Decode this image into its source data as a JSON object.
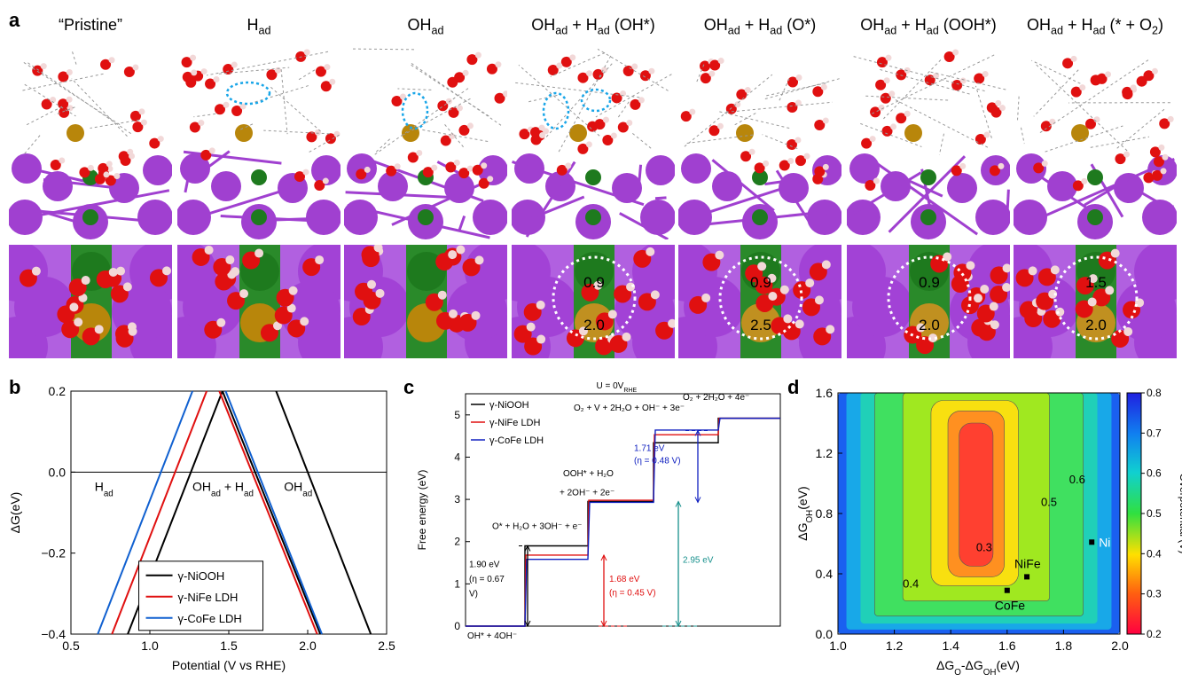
{
  "panels": {
    "a": "a",
    "b": "b",
    "c": "c",
    "d": "d"
  },
  "panel_a": {
    "columns": [
      {
        "title": "“Pristine”"
      },
      {
        "title": "H",
        "sub": "ad"
      },
      {
        "title": "OH",
        "sub": "ad"
      },
      {
        "title": "OH",
        "sub": "ad",
        "rest": " + H",
        "sub2": "ad",
        "tail": " (OH*)",
        "bader": [
          "0.9",
          "2.0"
        ]
      },
      {
        "title": "OH",
        "sub": "ad",
        "rest": " + H",
        "sub2": "ad",
        "tail": " (O*)",
        "bader": [
          "0.9",
          "2.5"
        ]
      },
      {
        "title": "OH",
        "sub": "ad",
        "rest": " + H",
        "sub2": "ad",
        "tail": " (OOH*)",
        "bader": [
          "0.9",
          "2.0"
        ]
      },
      {
        "title": "OH",
        "sub": "ad",
        "rest": " + H",
        "sub2": "ad",
        "tail": " (* + O",
        "sub3": "2",
        "tail2": ")",
        "bader": [
          "1.5",
          "2.0"
        ]
      }
    ],
    "colors": {
      "K": "#a040d0",
      "O": "#e01010",
      "H": "#f2d8d8",
      "Ni": "#1e7a1e",
      "Fe": "#b8860b",
      "selection": "#1aa6e8"
    }
  },
  "chart_data": [
    {
      "type": "line",
      "panel": "b",
      "xlabel": "Potential (V vs RHE)",
      "ylabel": "ΔG(eV)",
      "xlim": [
        0.5,
        2.5
      ],
      "ylim": [
        -0.4,
        0.2
      ],
      "xticks": [
        "0.5",
        "1.0",
        "1.5",
        "2.0",
        "2.5"
      ],
      "yticks": [
        "−0.4",
        "−0.2",
        "0.0",
        "0.2"
      ],
      "region_labels": [
        {
          "text": "H",
          "sub": "ad",
          "x": 0.65,
          "y": -0.02
        },
        {
          "text": "OH",
          "sub": "ad",
          "tail": " + H",
          "sub2": "ad",
          "x": 1.27,
          "y": -0.02
        },
        {
          "text": "OH",
          "sub": "ad",
          "x": 1.85,
          "y": -0.02
        }
      ],
      "series": [
        {
          "name": "γ-NiOOH",
          "color": "#000000",
          "segments": [
            [
              [
                0.86,
                -0.4
              ],
              [
                1.46,
                0.2
              ]
            ],
            [
              [
                1.46,
                0.2
              ],
              [
                2.08,
                -0.4
              ]
            ],
            [
              [
                1.8,
                0.2
              ],
              [
                2.4,
                -0.4
              ]
            ]
          ]
        },
        {
          "name": "γ-NiFe LDH",
          "color": "#e01010",
          "segments": [
            [
              [
                0.76,
                -0.4
              ],
              [
                1.36,
                0.2
              ]
            ],
            [
              [
                1.44,
                0.2
              ],
              [
                2.06,
                -0.4
              ]
            ]
          ]
        },
        {
          "name": "γ-CoFe LDH",
          "color": "#1060d0",
          "segments": [
            [
              [
                0.67,
                -0.4
              ],
              [
                1.27,
                0.2
              ]
            ],
            [
              [
                1.48,
                0.2
              ],
              [
                2.09,
                -0.4
              ]
            ]
          ]
        }
      ]
    },
    {
      "type": "line",
      "panel": "c",
      "title": "U = 0V",
      "title_sub": "RHE",
      "ylabel": "Free energy (eV)",
      "ylim": [
        0,
        5.5
      ],
      "yticks": [
        "0",
        "1",
        "2",
        "3",
        "4",
        "5"
      ],
      "series": [
        {
          "name": "γ-NiOOH",
          "color": "#000000",
          "levels": [
            0,
            1.9,
            2.95,
            4.34,
            4.92
          ]
        },
        {
          "name": "γ-NiFe LDH",
          "color": "#e01010",
          "levels": [
            0,
            1.68,
            2.98,
            4.53,
            4.92
          ]
        },
        {
          "name": "γ-CoFe LDH",
          "color": "#1020c0",
          "levels": [
            0,
            1.58,
            2.93,
            4.64,
            4.92
          ]
        }
      ],
      "step_labels": [
        "OH* + 4OH⁻",
        "O* + H₂O + 3OH⁻ + e⁻",
        "OOH* + H₂O",
        "+ 2OH⁻ + 2e⁻",
        "O₂ + V + 2H₂O + OH⁻ + 3e⁻",
        "O₂ + 2H₂O + 4e⁻"
      ],
      "annotations": [
        {
          "text": "1.90 eV",
          "color": "#000000"
        },
        {
          "text": "(η = 0.67",
          "color": "#000000"
        },
        {
          "text": "V)",
          "color": "#000000"
        },
        {
          "text": "1.68 eV",
          "color": "#e01010"
        },
        {
          "text": "(η = 0.45 V)",
          "color": "#e01010"
        },
        {
          "text": "2.95 eV",
          "color": "#17908c"
        },
        {
          "text": "1.71 eV",
          "color": "#1020c0"
        },
        {
          "text": "(η = 0.48 V)",
          "color": "#1020c0"
        }
      ]
    },
    {
      "type": "heatmap",
      "panel": "d",
      "xlabel": "ΔG",
      "xlabel_sub": "O",
      "xlabel_mid": "-ΔG",
      "xlabel_sub2": "OH",
      "xlabel_tail": "(eV)",
      "ylabel": "ΔG",
      "ylabel_sub": "OH",
      "ylabel_tail": "(eV)",
      "xlim": [
        1.0,
        2.0
      ],
      "ylim": [
        0.0,
        1.6
      ],
      "xticks": [
        "1.0",
        "1.2",
        "1.4",
        "1.6",
        "1.8",
        "2.0"
      ],
      "yticks": [
        "0.0",
        "0.4",
        "0.8",
        "1.2",
        "1.6"
      ],
      "colorbar": {
        "label": "Overpotential (V)",
        "range": [
          0.2,
          0.8
        ],
        "ticks": [
          "0.2",
          "0.3",
          "0.4",
          "0.5",
          "0.6",
          "0.7",
          "0.8"
        ]
      },
      "contour_labels": [
        "0.3",
        "0.4",
        "0.5",
        "0.6"
      ],
      "points": [
        {
          "label": "Ni",
          "x": 1.9,
          "y": 0.61
        },
        {
          "label": "NiFe",
          "x": 1.67,
          "y": 0.38
        },
        {
          "label": "CoFe",
          "x": 1.6,
          "y": 0.29
        }
      ]
    }
  ]
}
